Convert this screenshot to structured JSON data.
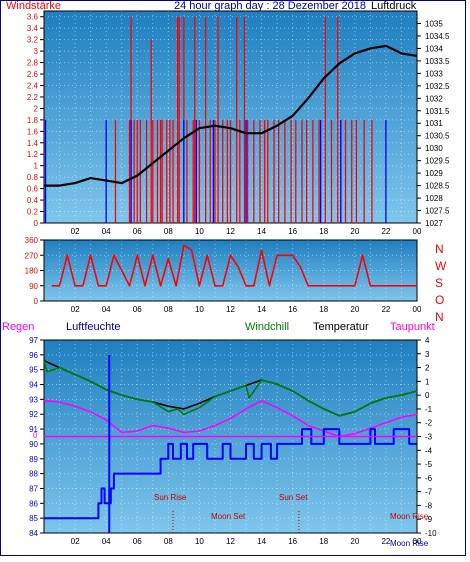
{
  "colors": {
    "plot_bg_top": "#1f7fc0",
    "plot_bg_bottom": "#7ec6ec",
    "frame": "#0000aa",
    "wind": "#ff0000",
    "gust": "#0000ff",
    "pressure": "#000000",
    "temperature": "#000000",
    "windchill": "#008000",
    "dewpoint": "#ff00ff",
    "humidity": "#0000ff",
    "rain": "#ff0000",
    "zero_line": "#ff00ff"
  },
  "panel1": {
    "title": "24 hour graph day : 28 Dezember 2018",
    "left_label": "Windstärke",
    "right_label": "Luftdruck"
  },
  "panel2": {
    "dir_labels": [
      "N",
      "W",
      "S",
      "O",
      "N"
    ]
  },
  "panel3": {
    "labels": {
      "rain": "Regen",
      "humidity": "Luftfeuchte",
      "windchill": "Windchill",
      "temperature": "Temperatur",
      "dewpoint": "Taupunkt"
    },
    "events": {
      "sun_rise": "Sun Rise",
      "sun_set": "Sun Set",
      "moon_set": "Moon Set",
      "moon_rise_a": "Moon Rise",
      "moon_rise_b": "Moon Rise",
      "rain_zero": "0"
    },
    "event_hours": {
      "sun_rise": 8.3,
      "sun_set": 16.4,
      "moon_set": 12.0,
      "moon_rise": 23.2
    }
  },
  "chart_data": [
    {
      "type": "line",
      "x_ticks": [
        "02",
        "04",
        "06",
        "08",
        "10",
        "12",
        "14",
        "16",
        "18",
        "20",
        "22",
        "00"
      ],
      "xlim": [
        0,
        24
      ],
      "left_axis": {
        "ticks": [
          "3.6",
          "3.4",
          "3.2",
          "3",
          "2.8",
          "2.6",
          "2.4",
          "2.2",
          "2",
          "1.8",
          "1.6",
          "1.4",
          "1.2",
          "1",
          "0.8",
          "0.6",
          "0.4",
          "0.2",
          "0"
        ],
        "ylim": [
          0,
          3.7
        ]
      },
      "right_axis": {
        "ticks": [
          "1035",
          "1034.5",
          "1034",
          "1033.5",
          "1033",
          "1032.5",
          "1032",
          "1031.5",
          "1031",
          "1030.5",
          "1030",
          "1029.5",
          "1029",
          "1028.5",
          "1028",
          "1027.5",
          "1027"
        ],
        "ylim": [
          1027,
          1035.5
        ]
      },
      "series": [
        {
          "key": "wind",
          "kind": "spikes",
          "x": [
            4.6,
            5.5,
            5.6,
            5.8,
            6.0,
            6.2,
            6.6,
            6.9,
            7.0,
            7.3,
            7.5,
            7.6,
            7.9,
            8.1,
            8.3,
            8.6,
            8.7,
            9.0,
            9.2,
            9.6,
            9.7,
            10.0,
            10.4,
            10.7,
            11.0,
            11.2,
            11.5,
            11.8,
            12.0,
            12.4,
            12.6,
            12.9,
            13.1,
            13.5,
            13.9,
            14.2,
            14.4,
            14.8,
            15.1,
            15.5,
            15.9,
            16.2,
            16.6,
            16.9,
            17.3,
            17.7,
            18.1,
            18.5,
            18.9,
            19.1,
            19.4,
            19.8,
            20.1,
            20.6,
            21.1
          ],
          "y": [
            1.8,
            1.8,
            3.6,
            1.8,
            1.8,
            1.8,
            1.8,
            3.2,
            1.8,
            1.8,
            1.8,
            1.8,
            1.8,
            1.8,
            1.8,
            3.6,
            3.6,
            3.6,
            1.8,
            1.8,
            3.6,
            1.8,
            3.6,
            1.8,
            1.8,
            3.6,
            1.8,
            1.8,
            1.8,
            3.6,
            1.8,
            3.6,
            1.8,
            1.8,
            1.8,
            1.8,
            1.8,
            1.8,
            1.8,
            1.8,
            1.8,
            1.8,
            1.8,
            1.8,
            1.8,
            1.8,
            3.6,
            1.8,
            3.6,
            1.8,
            1.8,
            1.8,
            1.8,
            1.8,
            1.8
          ]
        },
        {
          "key": "gust",
          "kind": "spikes",
          "x": [
            0.1,
            4.0,
            5.6,
            9.0,
            9.8,
            10.9,
            13.0,
            17.8,
            19.1,
            22.0
          ],
          "y": [
            1.8,
            1.8,
            1.8,
            1.8,
            1.8,
            1.8,
            1.8,
            1.8,
            1.8,
            1.8
          ]
        },
        {
          "key": "pressure",
          "kind": "line",
          "x": [
            0,
            1,
            2,
            3,
            4,
            5,
            6,
            7,
            8,
            9,
            10,
            11,
            12,
            13,
            14,
            15,
            16,
            17,
            18,
            19,
            20,
            21,
            22,
            23,
            24
          ],
          "y": [
            1028.5,
            1028.5,
            1028.6,
            1028.8,
            1028.7,
            1028.6,
            1028.9,
            1029.4,
            1029.9,
            1030.4,
            1030.8,
            1030.9,
            1030.8,
            1030.6,
            1030.6,
            1030.9,
            1031.3,
            1032.0,
            1032.8,
            1033.4,
            1033.8,
            1034.0,
            1034.1,
            1033.8,
            1033.7
          ]
        }
      ]
    },
    {
      "type": "line",
      "x_ticks": [
        "02",
        "04",
        "06",
        "08",
        "10",
        "12",
        "14",
        "16",
        "18",
        "20",
        "22",
        "00"
      ],
      "xlim": [
        0,
        24
      ],
      "left_axis": {
        "ticks": [
          "360",
          "270",
          "180",
          "90",
          "0"
        ],
        "ylim": [
          0,
          360
        ]
      },
      "series": [
        {
          "key": "wind_direction",
          "kind": "line",
          "x": [
            0.5,
            1.0,
            1.5,
            2.0,
            2.5,
            3.0,
            3.5,
            4.0,
            4.5,
            5.0,
            5.5,
            6.0,
            6.5,
            7.0,
            7.5,
            8.0,
            8.5,
            9.0,
            9.5,
            10.0,
            10.5,
            11.0,
            11.5,
            12.0,
            12.5,
            13.0,
            13.5,
            14.0,
            14.5,
            15.0,
            15.5,
            16.0,
            16.5,
            17.0,
            17.5,
            18.0,
            18.5,
            19.0,
            19.5,
            20.0,
            20.5,
            21.0,
            21.5,
            22.0,
            22.5,
            23.0,
            23.5,
            24.0
          ],
          "y": [
            90,
            90,
            270,
            90,
            90,
            270,
            90,
            90,
            270,
            180,
            90,
            270,
            90,
            270,
            90,
            250,
            90,
            330,
            300,
            90,
            270,
            90,
            90,
            270,
            200,
            90,
            90,
            300,
            90,
            270,
            270,
            270,
            200,
            90,
            90,
            90,
            90,
            90,
            90,
            90,
            270,
            90,
            90,
            90,
            90,
            90,
            90,
            90
          ]
        }
      ]
    },
    {
      "type": "line",
      "x_ticks": [
        "02",
        "04",
        "06",
        "08",
        "10",
        "12",
        "14",
        "16",
        "18",
        "20",
        "22",
        "00"
      ],
      "xlim": [
        0,
        24
      ],
      "left_axis": {
        "ticks": [
          "97",
          "96",
          "95",
          "94",
          "93",
          "92",
          "91",
          "90",
          "89",
          "88",
          "87",
          "86",
          "85",
          "84"
        ],
        "ylim": [
          84,
          97
        ]
      },
      "right_axis": {
        "ticks": [
          "4",
          "3",
          "2",
          "1",
          "0",
          "-1",
          "-2",
          "-3",
          "-4",
          "-5",
          "-6",
          "-7",
          "-8",
          "-9",
          "-10"
        ],
        "ylim": [
          -10,
          4
        ]
      },
      "series": [
        {
          "key": "temperature",
          "kind": "line",
          "axis": "right",
          "x": [
            0,
            1,
            2,
            3,
            4,
            5,
            6,
            7,
            8,
            9,
            10,
            11,
            12,
            13,
            14,
            15,
            16,
            17,
            18,
            19,
            20,
            21,
            22,
            23,
            24
          ],
          "y": [
            2.5,
            2.0,
            1.5,
            1.0,
            0.4,
            0.0,
            -0.3,
            -0.5,
            -0.8,
            -1.0,
            -0.6,
            -0.1,
            0.3,
            0.7,
            1.1,
            0.8,
            0.3,
            -0.4,
            -1.0,
            -1.5,
            -1.2,
            -0.6,
            -0.2,
            0.0,
            0.3
          ]
        },
        {
          "key": "windchill",
          "kind": "line",
          "axis": "right",
          "x": [
            0,
            0.2,
            1,
            2,
            3,
            4,
            5,
            6,
            7,
            8,
            8.6,
            9,
            10,
            10.4,
            11,
            12,
            13,
            13.2,
            14,
            15,
            16,
            17,
            18,
            19,
            20,
            21,
            22,
            23,
            24
          ],
          "y": [
            2.5,
            1.7,
            2.0,
            1.5,
            1.0,
            0.4,
            0.0,
            -0.3,
            -0.5,
            -1.2,
            -1.0,
            -1.4,
            -0.9,
            -0.6,
            -0.1,
            0.3,
            0.7,
            -0.2,
            1.1,
            0.8,
            0.3,
            -0.4,
            -1.0,
            -1.5,
            -1.2,
            -0.6,
            -0.2,
            0.0,
            0.3
          ]
        },
        {
          "key": "dewpoint",
          "kind": "line",
          "axis": "right",
          "x": [
            0,
            1,
            2,
            3,
            4,
            5,
            6,
            7,
            8,
            9,
            10,
            11,
            12,
            13,
            14,
            15,
            16,
            17,
            18,
            19,
            20,
            21,
            22,
            23,
            24
          ],
          "y": [
            -0.4,
            -0.5,
            -0.8,
            -1.2,
            -1.8,
            -2.7,
            -2.6,
            -2.2,
            -2.4,
            -2.7,
            -2.6,
            -2.2,
            -1.7,
            -1.0,
            -0.4,
            -0.9,
            -1.5,
            -2.2,
            -2.6,
            -3.0,
            -2.8,
            -2.4,
            -2.0,
            -1.6,
            -1.4
          ]
        },
        {
          "key": "humidity",
          "kind": "step",
          "axis": "left",
          "x": [
            0,
            2.5,
            3.5,
            3.7,
            3.9,
            4.3,
            4.5,
            5.5,
            7.5,
            8.0,
            8.3,
            8.8,
            9.2,
            9.6,
            10.5,
            11.0,
            11.5,
            12.0,
            13.0,
            13.5,
            14.0,
            14.6,
            15.0,
            16.0,
            16.6,
            17.2,
            18.0,
            19.0,
            21.0,
            21.3,
            22.5,
            23.5,
            24.0
          ],
          "y": [
            85,
            85,
            86,
            87,
            86,
            87,
            88,
            88,
            89,
            90,
            89,
            90,
            89,
            90,
            89,
            89,
            90,
            89,
            90,
            89,
            90,
            89,
            90,
            90,
            91,
            90,
            91,
            90,
            91,
            90,
            91,
            90,
            90
          ]
        }
      ]
    }
  ]
}
